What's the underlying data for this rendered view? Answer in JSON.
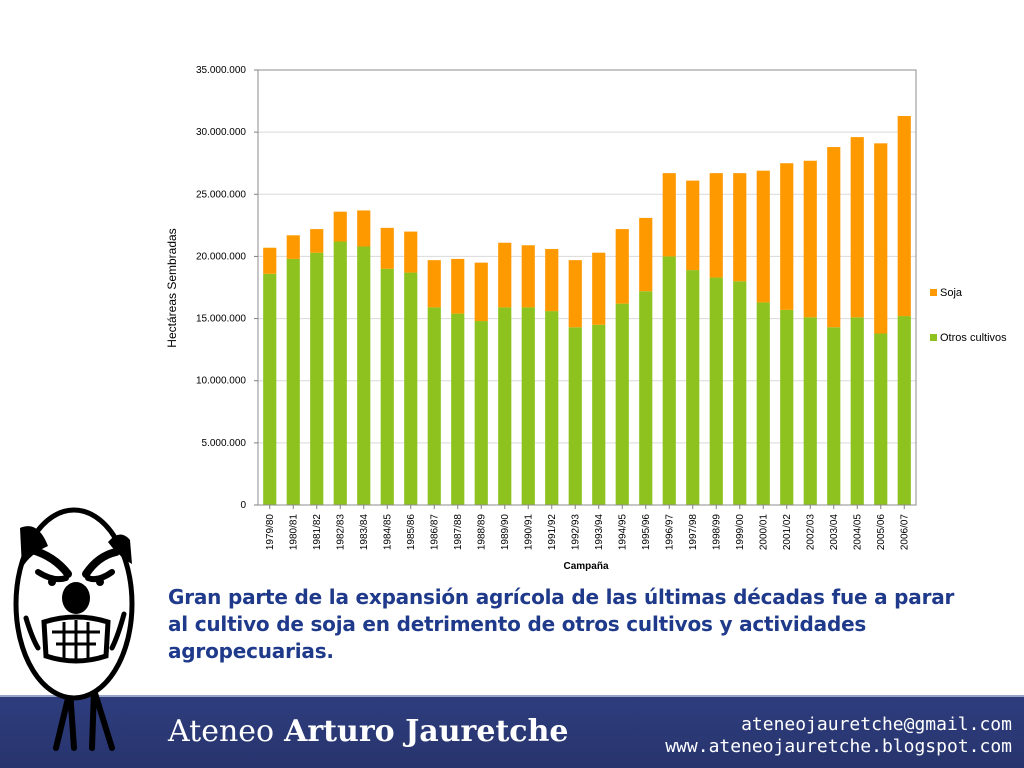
{
  "chart_data": {
    "type": "bar",
    "stacked": true,
    "xlabel": "Campaña",
    "ylabel": "Hectáreas Sembradas",
    "ylim": [
      0,
      35000000
    ],
    "yticks": [
      0,
      5000000,
      10000000,
      15000000,
      20000000,
      25000000,
      30000000,
      35000000
    ],
    "ytick_labels": [
      "0",
      "5.000.000",
      "10.000.000",
      "15.000.000",
      "20.000.000",
      "25.000.000",
      "30.000.000",
      "35.000.000"
    ],
    "grid": true,
    "legend_position": "right",
    "categories": [
      "1979/80",
      "1980/81",
      "1981/82",
      "1982/83",
      "1983/84",
      "1984/85",
      "1985/86",
      "1986/87",
      "1987/88",
      "1988/89",
      "1989/90",
      "1990/91",
      "1991/92",
      "1992/93",
      "1993/94",
      "1994/95",
      "1995/96",
      "1996/97",
      "1997/98",
      "1998/99",
      "1999/00",
      "2000/01",
      "2001/02",
      "2002/03",
      "2003/04",
      "2004/05",
      "2005/06",
      "2006/07"
    ],
    "series": [
      {
        "name": "Otros cultivos",
        "color": "#8dc21f",
        "values": [
          18600000,
          19800000,
          20300000,
          21200000,
          20800000,
          19000000,
          18700000,
          15900000,
          15400000,
          14800000,
          15900000,
          15900000,
          15600000,
          14300000,
          14500000,
          16200000,
          17200000,
          20000000,
          18900000,
          18300000,
          18000000,
          16300000,
          15700000,
          15100000,
          14300000,
          15100000,
          13800000,
          15200000
        ]
      },
      {
        "name": "Soja",
        "color": "#ff9900",
        "values": [
          2100000,
          1900000,
          1900000,
          2400000,
          2900000,
          3300000,
          3300000,
          3800000,
          4400000,
          4700000,
          5200000,
          5000000,
          5000000,
          5400000,
          5800000,
          6000000,
          5900000,
          6700000,
          7200000,
          8400000,
          8700000,
          10600000,
          11800000,
          12600000,
          14500000,
          14500000,
          15300000,
          16100000
        ]
      }
    ]
  },
  "caption": {
    "line1": "Gran parte de la expansión agrícola de las últimas décadas fue a parar",
    "line2": "al cultivo de soja en detrimento de otros cultivos y actividades",
    "line3": "agropecuarias."
  },
  "footer": {
    "brand_part1": "Ateneo",
    "brand_part2": "Arturo Jauretche",
    "email": "ateneojauretche@gmail.com",
    "website": "www.ateneojauretche.blogspot.com",
    "background_color": "#2b3a7a"
  },
  "mascot": {
    "icon": "rage-face-icon"
  }
}
